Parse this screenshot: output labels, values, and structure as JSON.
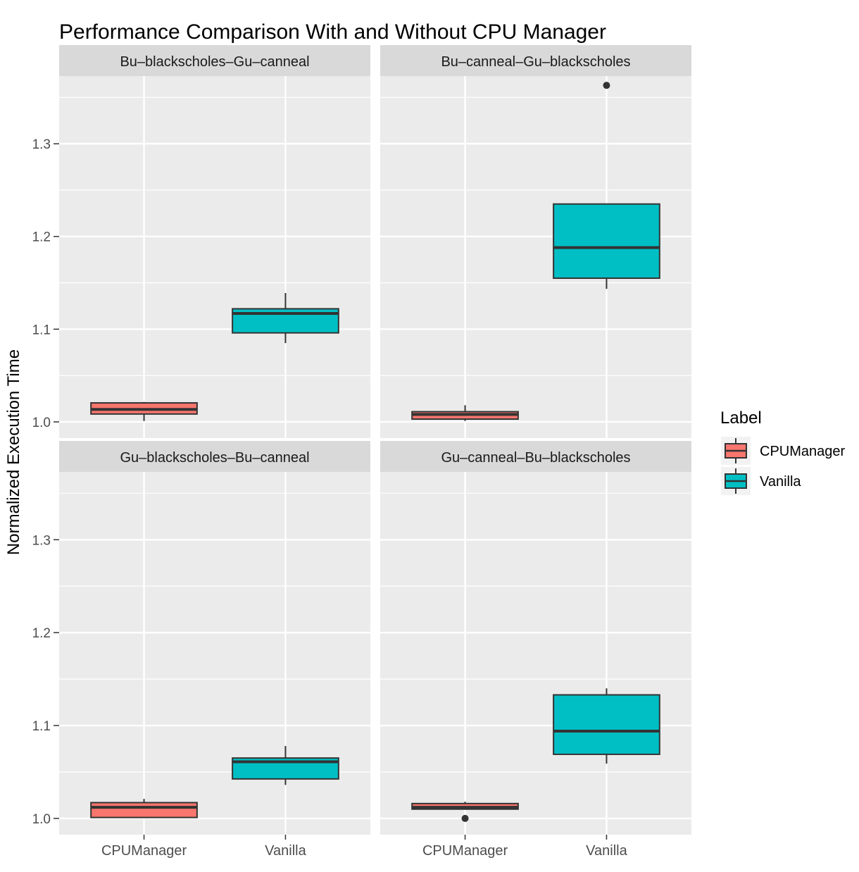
{
  "chart_data": {
    "type": "box",
    "title": "Performance Comparison With and Without CPU Manager",
    "ylabel": "Normalized Execution Time",
    "xlabel": "",
    "categories": [
      "CPUManager",
      "Vanilla"
    ],
    "yticks": [
      1.0,
      1.1,
      1.2,
      1.3
    ],
    "ylim": [
      0.9825,
      1.373
    ],
    "grid": true,
    "legend": {
      "title": "Label",
      "placement": "right",
      "entries": [
        "CPUManager",
        "Vanilla"
      ]
    },
    "colors": {
      "CPUManager": "#F8766D",
      "Vanilla": "#00BFC4",
      "panel": "#EBEBEB",
      "strip": "#D9D9D9",
      "outline": "#333333"
    },
    "facets": [
      {
        "name": "Bu–blackscholes–Gu–canneal",
        "boxes": [
          {
            "category": "CPUManager",
            "low": 1.001,
            "q1": 1.0085,
            "median": 1.0135,
            "q3": 1.0205,
            "high": 1.0215,
            "outliers": []
          },
          {
            "category": "Vanilla",
            "low": 1.085,
            "q1": 1.096,
            "median": 1.117,
            "q3": 1.122,
            "high": 1.139,
            "outliers": []
          }
        ]
      },
      {
        "name": "Bu–canneal–Gu–blackscholes",
        "boxes": [
          {
            "category": "CPUManager",
            "low": 1.001,
            "q1": 1.003,
            "median": 1.008,
            "q3": 1.011,
            "high": 1.018,
            "outliers": []
          },
          {
            "category": "Vanilla",
            "low": 1.1435,
            "q1": 1.155,
            "median": 1.188,
            "q3": 1.235,
            "high": 1.235,
            "outliers": [
              1.363
            ]
          }
        ]
      },
      {
        "name": "Gu–blackscholes–Bu–canneal",
        "boxes": [
          {
            "category": "CPUManager",
            "low": 1.001,
            "q1": 1.001,
            "median": 1.012,
            "q3": 1.017,
            "high": 1.021,
            "outliers": []
          },
          {
            "category": "Vanilla",
            "low": 1.036,
            "q1": 1.0425,
            "median": 1.061,
            "q3": 1.065,
            "high": 1.078,
            "outliers": []
          }
        ]
      },
      {
        "name": "Gu–canneal–Bu–blackscholes",
        "boxes": [
          {
            "category": "CPUManager",
            "low": 1.01,
            "q1": 1.01,
            "median": 1.012,
            "q3": 1.016,
            "high": 1.018,
            "outliers": [
              1.0
            ]
          },
          {
            "category": "Vanilla",
            "low": 1.059,
            "q1": 1.069,
            "median": 1.094,
            "q3": 1.133,
            "high": 1.14,
            "outliers": []
          }
        ]
      }
    ]
  }
}
